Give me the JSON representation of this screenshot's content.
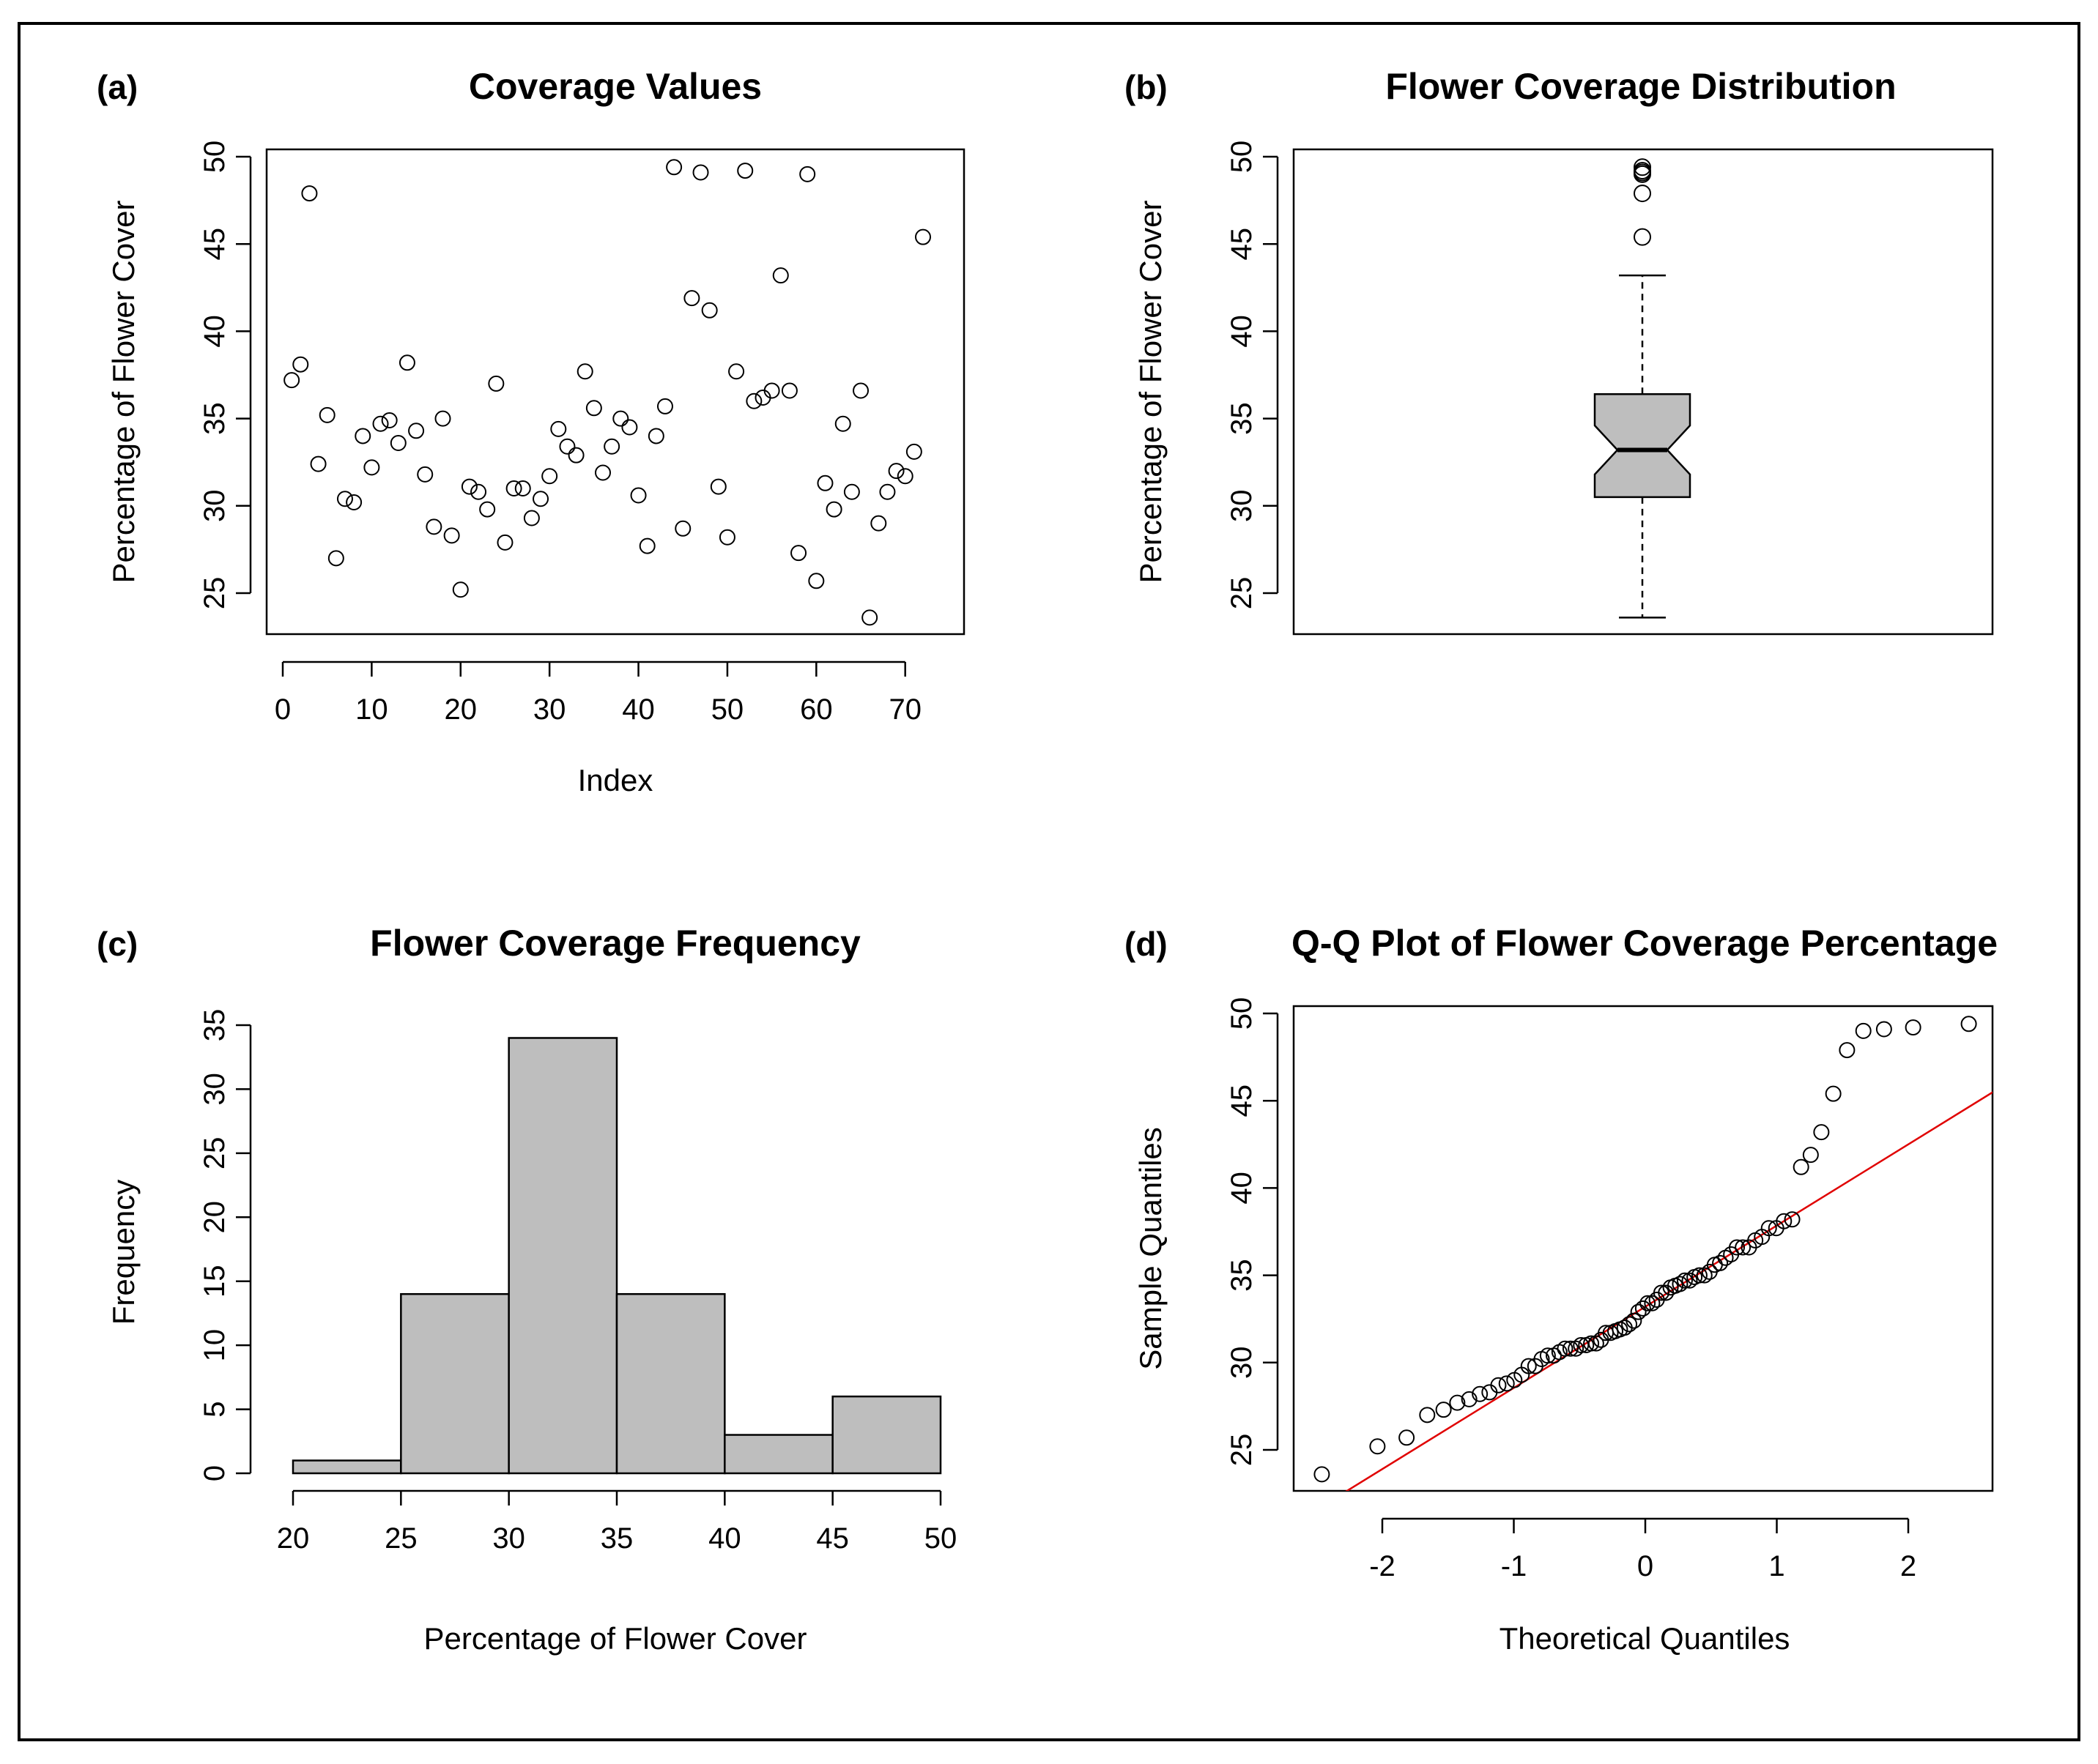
{
  "colors": {
    "background": "#ffffff",
    "ink": "#000000",
    "fill_gray": "#bebebe",
    "qq_line": "#e00000"
  },
  "chart_data": [
    {
      "panel": "(a)",
      "type": "scatter",
      "title": "Coverage Values",
      "xlabel": "Index",
      "ylabel": "Percentage of Flower Cover",
      "xlim": [
        -1,
        75
      ],
      "ylim": [
        22.5,
        50.5
      ],
      "xticks": [
        0,
        10,
        20,
        30,
        40,
        50,
        60,
        70
      ],
      "yticks": [
        25,
        30,
        35,
        40,
        45,
        50
      ],
      "grid": false,
      "x": [
        1,
        2,
        3,
        4,
        5,
        6,
        7,
        8,
        9,
        10,
        11,
        12,
        13,
        14,
        15,
        16,
        17,
        18,
        19,
        20,
        21,
        22,
        23,
        24,
        25,
        26,
        27,
        28,
        29,
        30,
        31,
        32,
        33,
        34,
        35,
        36,
        37,
        38,
        39,
        40,
        41,
        42,
        43,
        44,
        45,
        46,
        47,
        48,
        49,
        50,
        51,
        52,
        53,
        54,
        55,
        56,
        57,
        58,
        59,
        60,
        61,
        62,
        63,
        64,
        65,
        66,
        67,
        68,
        69,
        70,
        71,
        72
      ],
      "y": [
        37.2,
        38.1,
        47.9,
        32.4,
        35.2,
        27.0,
        30.4,
        30.2,
        34.0,
        32.2,
        34.7,
        34.9,
        33.6,
        38.2,
        34.3,
        31.8,
        28.8,
        35.0,
        28.3,
        25.2,
        31.1,
        30.8,
        29.8,
        37.0,
        27.9,
        31.0,
        31.0,
        29.3,
        30.4,
        31.7,
        34.4,
        33.4,
        32.9,
        37.7,
        35.6,
        31.9,
        33.4,
        35.0,
        34.5,
        30.6,
        27.7,
        34.0,
        35.7,
        49.4,
        28.7,
        41.9,
        49.1,
        41.2,
        31.1,
        28.2,
        37.7,
        49.2,
        36.0,
        36.2,
        36.6,
        43.2,
        36.6,
        27.3,
        49.0,
        25.7,
        31.3,
        29.8,
        34.7,
        30.8,
        36.6,
        23.6,
        29.0,
        30.8,
        32.0,
        31.7,
        33.1,
        45.4
      ]
    },
    {
      "panel": "(b)",
      "type": "box",
      "title": "Flower Coverage Distribution",
      "ylabel": "Percentage of Flower Cover",
      "ylim": [
        22.5,
        50.5
      ],
      "yticks": [
        25,
        30,
        35,
        40,
        45,
        50
      ],
      "notch": true,
      "stats": {
        "lower_whisker": 23.6,
        "q1": 30.5,
        "median": 33.2,
        "q3": 36.4,
        "upper_whisker": 43.2,
        "notch_low": 31.8,
        "notch_high": 34.6
      },
      "outliers": [
        45.4,
        47.9,
        49.0,
        49.1,
        49.2,
        49.4
      ]
    },
    {
      "panel": "(c)",
      "type": "bar",
      "title": "Flower Coverage Frequency",
      "xlabel": "Percentage of Flower Cover",
      "ylabel": "Frequency",
      "bins": [
        20,
        25,
        30,
        35,
        40,
        45,
        50
      ],
      "categories": [
        "20-25",
        "25-30",
        "30-35",
        "35-40",
        "40-45",
        "45-50"
      ],
      "values": [
        1,
        14,
        34,
        14,
        3,
        6
      ],
      "xlim": [
        20,
        50
      ],
      "ylim": [
        0,
        35
      ],
      "xticks": [
        20,
        25,
        30,
        35,
        40,
        45,
        50
      ],
      "yticks": [
        0,
        5,
        10,
        15,
        20,
        25,
        30,
        35
      ]
    },
    {
      "panel": "(d)",
      "type": "scatter",
      "title": "Q-Q Plot of Flower Coverage Percentage",
      "xlabel": "Theoretical Quantiles",
      "ylabel": "Sample Quantiles",
      "xlim": [
        -2.6,
        2.6
      ],
      "ylim": [
        22.5,
        50.5
      ],
      "xticks": [
        -2,
        -1,
        0,
        1,
        2
      ],
      "yticks": [
        25,
        30,
        35,
        40,
        45,
        50
      ],
      "reference_line": {
        "intercept": 33.2,
        "slope": 4.65
      }
    }
  ]
}
